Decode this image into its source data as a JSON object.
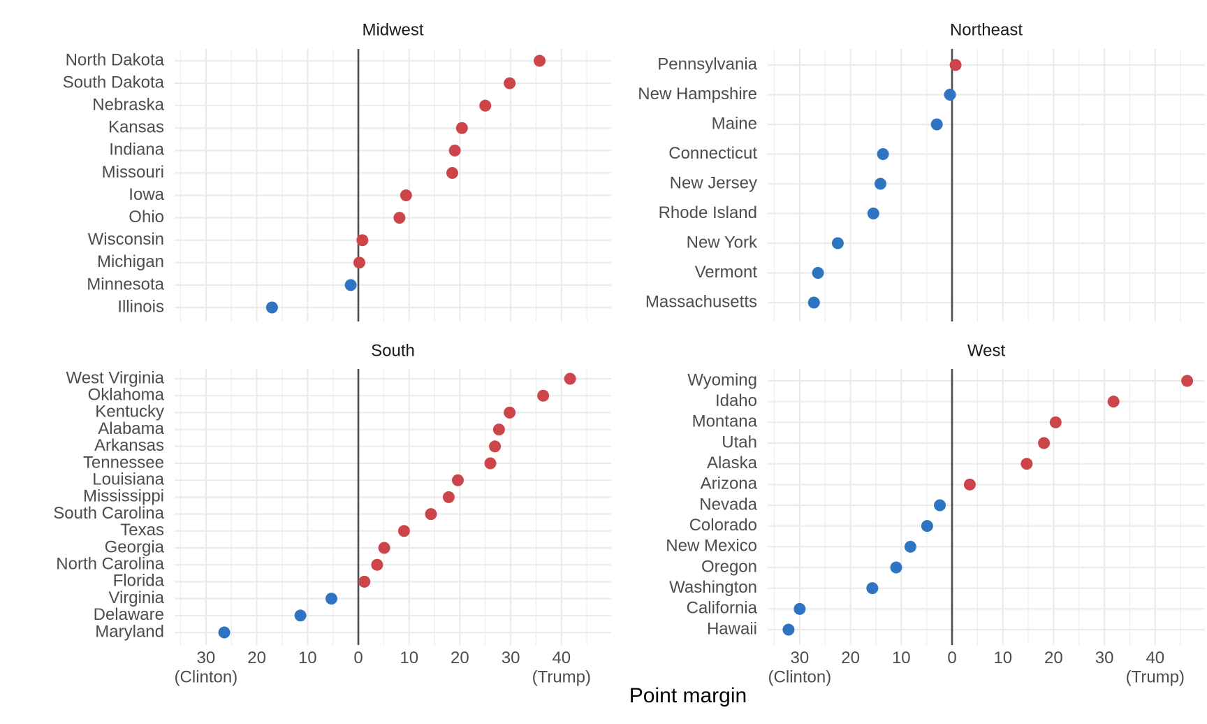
{
  "chart_data": {
    "type": "scatter",
    "xlabel": "Point margin",
    "x_ticks": [
      "30\n(Clinton)",
      "20",
      "10",
      "0",
      "10",
      "20",
      "30",
      "40\n(Trump)"
    ],
    "x_tick_values": [
      -30,
      -20,
      -10,
      0,
      10,
      20,
      30,
      40
    ],
    "xlim": [
      -35,
      50
    ],
    "zero_line": true,
    "grid": true,
    "colors": {
      "trump": "#cb454a",
      "clinton": "#2e74c0",
      "grid": "#ebebeb",
      "zero_line": "#4d4d4d"
    },
    "panels": [
      {
        "title": "Midwest",
        "states": [
          "North Dakota",
          "South Dakota",
          "Nebraska",
          "Kansas",
          "Indiana",
          "Missouri",
          "Iowa",
          "Ohio",
          "Wisconsin",
          "Michigan",
          "Minnesota",
          "Illinois"
        ],
        "values": [
          35.7,
          29.8,
          25.0,
          20.4,
          19.0,
          18.5,
          9.4,
          8.1,
          0.8,
          0.2,
          -1.5,
          -17.0
        ]
      },
      {
        "title": "Northeast",
        "states": [
          "Pennsylvania",
          "New Hampshire",
          "Maine",
          "Connecticut",
          "New Jersey",
          "Rhode Island",
          "New York",
          "Vermont",
          "Massachusetts"
        ],
        "values": [
          0.7,
          -0.4,
          -3.0,
          -13.6,
          -14.1,
          -15.5,
          -22.5,
          -26.4,
          -27.2
        ]
      },
      {
        "title": "South",
        "states": [
          "West Virginia",
          "Oklahoma",
          "Kentucky",
          "Alabama",
          "Arkansas",
          "Tennessee",
          "Louisiana",
          "Mississippi",
          "South Carolina",
          "Texas",
          "Georgia",
          "North Carolina",
          "Florida",
          "Virginia",
          "Delaware",
          "Maryland"
        ],
        "values": [
          41.7,
          36.4,
          29.8,
          27.7,
          26.9,
          26.0,
          19.6,
          17.8,
          14.3,
          9.0,
          5.1,
          3.7,
          1.2,
          -5.3,
          -11.4,
          -26.4
        ]
      },
      {
        "title": "West",
        "states": [
          "Wyoming",
          "Idaho",
          "Montana",
          "Utah",
          "Alaska",
          "Arizona",
          "Nevada",
          "Colorado",
          "New Mexico",
          "Oregon",
          "Washington",
          "California",
          "Hawaii"
        ],
        "values": [
          46.3,
          31.8,
          20.4,
          18.1,
          14.7,
          3.5,
          -2.4,
          -4.9,
          -8.2,
          -11.0,
          -15.7,
          -30.0,
          -32.2
        ]
      }
    ]
  }
}
